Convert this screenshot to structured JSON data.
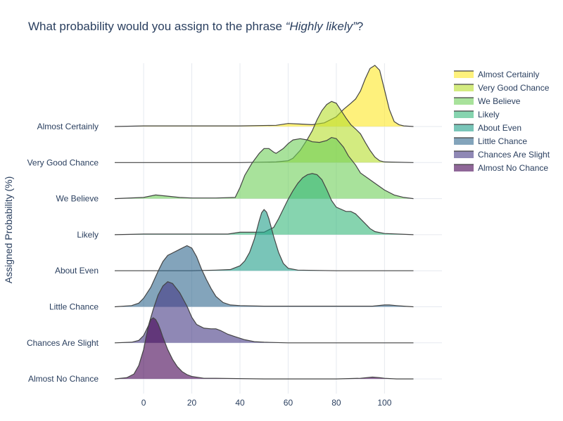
{
  "chart_data": {
    "type": "ridgeline",
    "title_prefix": "What probability would you assign to the phrase ",
    "title_quote": "“Highly likely”",
    "title_suffix": "?",
    "xlabel": "",
    "ylabel": "Assigned Probability (%)",
    "xlim": [
      -12,
      118
    ],
    "x_ticks": [
      0,
      20,
      40,
      60,
      80,
      100
    ],
    "grid": true,
    "legend_position": "top-right",
    "series": [
      {
        "name": "Almost Certainly",
        "color": "#fde725",
        "x": [
          -12,
          0,
          20,
          40,
          55,
          60,
          65,
          70,
          75,
          80,
          83,
          86,
          88,
          90,
          92,
          94,
          96,
          98,
          100,
          102,
          104,
          106,
          108,
          112
        ],
        "density": [
          0,
          0.01,
          0.01,
          0.01,
          0.02,
          0.05,
          0.04,
          0.03,
          0.06,
          0.16,
          0.28,
          0.38,
          0.45,
          0.58,
          0.78,
          0.95,
          1.0,
          0.92,
          0.6,
          0.28,
          0.08,
          0.03,
          0.01,
          0
        ]
      },
      {
        "name": "Very Good Chance",
        "color": "#b5de2b",
        "x": [
          -12,
          0,
          20,
          40,
          55,
          60,
          62,
          65,
          68,
          70,
          72,
          74,
          76,
          78,
          80,
          82,
          84,
          86,
          88,
          90,
          92,
          94,
          96,
          98,
          100,
          112
        ],
        "density": [
          0,
          0,
          0,
          0,
          0.01,
          0.03,
          0.07,
          0.2,
          0.38,
          0.52,
          0.7,
          0.85,
          0.95,
          1.0,
          0.97,
          0.85,
          0.73,
          0.62,
          0.55,
          0.47,
          0.33,
          0.2,
          0.09,
          0.03,
          0.01,
          0
        ]
      },
      {
        "name": "We Believe",
        "color": "#6ece58",
        "x": [
          -12,
          0,
          5,
          10,
          15,
          20,
          30,
          38,
          40,
          42,
          45,
          48,
          50,
          52,
          54,
          55,
          58,
          60,
          62,
          65,
          68,
          70,
          73,
          76,
          78,
          80,
          83,
          85,
          88,
          90,
          95,
          100,
          104,
          108,
          112
        ],
        "density": [
          0,
          0.02,
          0.06,
          0.04,
          0.02,
          0.01,
          0.01,
          0.02,
          0.18,
          0.38,
          0.58,
          0.74,
          0.82,
          0.82,
          0.76,
          0.74,
          0.82,
          0.9,
          0.96,
          0.98,
          0.96,
          0.93,
          0.92,
          0.95,
          1.0,
          0.98,
          0.84,
          0.7,
          0.55,
          0.42,
          0.28,
          0.14,
          0.06,
          0.02,
          0
        ]
      },
      {
        "name": "Likely",
        "color": "#35b779",
        "x": [
          -12,
          0,
          20,
          35,
          40,
          45,
          50,
          54,
          56,
          58,
          60,
          62,
          64,
          66,
          68,
          70,
          72,
          74,
          76,
          78,
          80,
          84,
          86,
          88,
          90,
          92,
          94,
          96,
          100,
          112
        ],
        "density": [
          0,
          0.01,
          0.01,
          0.01,
          0.04,
          0.04,
          0.04,
          0.12,
          0.26,
          0.42,
          0.58,
          0.72,
          0.84,
          0.93,
          0.98,
          1.0,
          0.98,
          0.9,
          0.74,
          0.56,
          0.45,
          0.38,
          0.38,
          0.34,
          0.26,
          0.18,
          0.1,
          0.05,
          0.02,
          0
        ]
      },
      {
        "name": "About Even",
        "color": "#1f9e89",
        "x": [
          -12,
          0,
          20,
          30,
          36,
          40,
          42,
          44,
          46,
          48,
          49,
          50,
          51,
          52,
          54,
          56,
          58,
          60,
          64,
          80,
          112
        ],
        "density": [
          0,
          0,
          0,
          0.01,
          0.02,
          0.08,
          0.16,
          0.3,
          0.52,
          0.82,
          0.95,
          1.0,
          0.96,
          0.85,
          0.56,
          0.3,
          0.12,
          0.04,
          0.01,
          0,
          0
        ]
      },
      {
        "name": "Little Chance",
        "color": "#31688e",
        "x": [
          -12,
          -5,
          -2,
          0,
          3,
          6,
          8,
          10,
          12,
          15,
          18,
          20,
          22,
          24,
          26,
          28,
          30,
          33,
          36,
          40,
          50,
          60,
          80,
          95,
          100,
          102,
          105,
          108,
          112
        ],
        "density": [
          0,
          0.02,
          0.06,
          0.14,
          0.32,
          0.58,
          0.74,
          0.84,
          0.88,
          0.94,
          1.0,
          0.96,
          0.82,
          0.62,
          0.45,
          0.3,
          0.17,
          0.07,
          0.03,
          0.02,
          0.01,
          0.01,
          0.01,
          0.01,
          0.03,
          0.03,
          0.02,
          0.01,
          0
        ]
      },
      {
        "name": "Chances Are Slight",
        "color": "#443983",
        "x": [
          -12,
          -5,
          -2,
          0,
          2,
          4,
          6,
          8,
          10,
          12,
          15,
          18,
          20,
          22,
          25,
          28,
          30,
          32,
          35,
          38,
          42,
          46,
          50,
          60,
          112
        ],
        "density": [
          0,
          0.01,
          0.04,
          0.12,
          0.28,
          0.55,
          0.78,
          0.93,
          1.0,
          0.97,
          0.82,
          0.6,
          0.42,
          0.3,
          0.24,
          0.23,
          0.23,
          0.2,
          0.14,
          0.1,
          0.05,
          0.02,
          0.01,
          0,
          0
        ]
      },
      {
        "name": "Almost No Chance",
        "color": "#440154",
        "x": [
          -12,
          -7,
          -4,
          -2,
          0,
          1,
          2,
          3,
          4,
          5,
          6,
          7,
          8,
          10,
          12,
          14,
          16,
          18,
          20,
          25,
          30,
          50,
          80,
          90,
          95,
          98,
          100,
          105,
          112
        ],
        "density": [
          0,
          0.02,
          0.08,
          0.22,
          0.48,
          0.68,
          0.86,
          0.97,
          1.0,
          0.97,
          0.9,
          0.8,
          0.68,
          0.48,
          0.32,
          0.2,
          0.12,
          0.07,
          0.04,
          0.01,
          0.01,
          0,
          0,
          0.01,
          0.03,
          0.02,
          0.01,
          0,
          0
        ]
      }
    ]
  }
}
